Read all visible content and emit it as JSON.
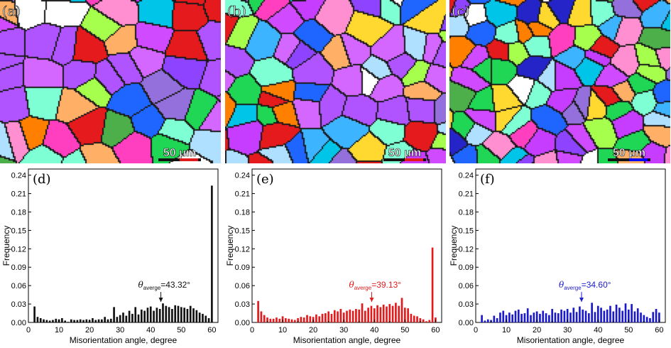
{
  "panels": [
    {
      "label": "(a)",
      "scale_bar": "50 μm",
      "bar_color": "#e31a1c",
      "seed": 11,
      "cell": 40,
      "band_strength": 0.75
    },
    {
      "label": "(b)",
      "scale_bar": "50 μm",
      "bar_color": "#e31a1c",
      "seed": 23,
      "cell": 36,
      "band_strength": 0.45
    },
    {
      "label": "(c)",
      "scale_bar": "50 μm",
      "bar_color": "#0000ff",
      "seed": 37,
      "cell": 30,
      "band_strength": 0.0
    }
  ],
  "chart_data": [
    {
      "type": "bar",
      "label": "(d)",
      "color": "#111111",
      "xlabel": "Misorientation angle, degree",
      "ylabel": "Frequency",
      "xlim": [
        0,
        62
      ],
      "ylim": [
        0,
        0.25
      ],
      "xticks": [
        0,
        10,
        20,
        30,
        40,
        50,
        60
      ],
      "yticks": [
        "0.00",
        "0.03",
        "0.06",
        "0.09",
        "0.12",
        "0.15",
        "0.18",
        "0.21",
        "0.24"
      ],
      "annotation": {
        "symbol": "θ",
        "sub": "averge",
        "text": "=43.32°",
        "x": 43.32
      },
      "x": [
        2,
        3,
        4,
        5,
        6,
        7,
        8,
        9,
        10,
        11,
        12,
        13,
        14,
        15,
        16,
        17,
        18,
        19,
        20,
        21,
        22,
        23,
        24,
        25,
        26,
        27,
        28,
        29,
        30,
        31,
        32,
        33,
        34,
        35,
        36,
        37,
        38,
        39,
        40,
        41,
        42,
        43,
        44,
        45,
        46,
        47,
        48,
        49,
        50,
        51,
        52,
        53,
        54,
        55,
        56,
        57,
        58,
        59,
        60
      ],
      "values": [
        0.026,
        0.009,
        0.007,
        0.005,
        0.004,
        0.003,
        0.004,
        0.006,
        0.005,
        0.007,
        0.003,
        0.001,
        0.005,
        0.004,
        0.004,
        0.005,
        0.004,
        0.005,
        0.004,
        0.007,
        0.004,
        0.005,
        0.005,
        0.009,
        0.005,
        0.006,
        0.025,
        0.009,
        0.012,
        0.016,
        0.011,
        0.019,
        0.014,
        0.025,
        0.013,
        0.021,
        0.019,
        0.024,
        0.026,
        0.019,
        0.024,
        0.022,
        0.031,
        0.027,
        0.025,
        0.022,
        0.028,
        0.027,
        0.025,
        0.024,
        0.022,
        0.027,
        0.023,
        0.02,
        0.016,
        0.014,
        0.011,
        0.007,
        0.223
      ]
    },
    {
      "type": "bar",
      "label": "(e)",
      "color": "#e31a1c",
      "xlabel": "Misorientation angle, degree",
      "ylabel": "Frequency",
      "xlim": [
        0,
        62
      ],
      "ylim": [
        0,
        0.25
      ],
      "xticks": [
        0,
        10,
        20,
        30,
        40,
        50,
        60
      ],
      "yticks": [
        "0.00",
        "0.03",
        "0.06",
        "0.09",
        "0.12",
        "0.15",
        "0.18",
        "0.21",
        "0.24"
      ],
      "annotation": {
        "symbol": "θ",
        "sub": "averge",
        "text": "=39.13°",
        "x": 39.13
      },
      "x": [
        2,
        3,
        4,
        5,
        6,
        7,
        8,
        9,
        10,
        11,
        12,
        13,
        14,
        15,
        16,
        17,
        18,
        19,
        20,
        21,
        22,
        23,
        24,
        25,
        26,
        27,
        28,
        29,
        30,
        31,
        32,
        33,
        34,
        35,
        36,
        37,
        38,
        39,
        40,
        41,
        42,
        43,
        44,
        45,
        46,
        47,
        48,
        49,
        50,
        51,
        52,
        53,
        54,
        55,
        56,
        57,
        58,
        59,
        60
      ],
      "values": [
        0.035,
        0.018,
        0.012,
        0.008,
        0.006,
        0.006,
        0.008,
        0.006,
        0.01,
        0.007,
        0.006,
        0.005,
        0.004,
        0.007,
        0.009,
        0.008,
        0.012,
        0.01,
        0.009,
        0.013,
        0.01,
        0.014,
        0.015,
        0.018,
        0.014,
        0.02,
        0.018,
        0.022,
        0.016,
        0.019,
        0.021,
        0.019,
        0.022,
        0.021,
        0.031,
        0.019,
        0.024,
        0.027,
        0.023,
        0.028,
        0.025,
        0.029,
        0.026,
        0.03,
        0.027,
        0.032,
        0.027,
        0.04,
        0.024,
        0.023,
        0.014,
        0.011,
        0.01,
        0.007,
        0.005,
        0.002,
        0.004,
        0.122,
        0.008
      ]
    },
    {
      "type": "bar",
      "label": "(f)",
      "color": "#1a1acc",
      "xlabel": "Misorientation angle, degree",
      "ylabel": "Frequency",
      "xlim": [
        0,
        62
      ],
      "ylim": [
        0,
        0.25
      ],
      "xticks": [
        0,
        10,
        20,
        30,
        40,
        50,
        60
      ],
      "yticks": [
        "0.00",
        "0.03",
        "0.06",
        "0.09",
        "0.12",
        "0.15",
        "0.18",
        "0.21",
        "0.24"
      ],
      "annotation": {
        "symbol": "θ",
        "sub": "averge",
        "text": "=34.60°",
        "x": 34.6
      },
      "x": [
        2,
        3,
        4,
        5,
        6,
        7,
        8,
        9,
        10,
        11,
        12,
        13,
        14,
        15,
        16,
        17,
        18,
        19,
        20,
        21,
        22,
        23,
        24,
        25,
        26,
        27,
        28,
        29,
        30,
        31,
        32,
        33,
        34,
        35,
        36,
        37,
        38,
        39,
        40,
        41,
        42,
        43,
        44,
        45,
        46,
        47,
        48,
        49,
        50,
        51,
        52,
        53,
        54,
        55,
        56,
        57,
        58,
        59,
        60
      ],
      "values": [
        0.012,
        0.003,
        0.005,
        0.004,
        0.011,
        0.007,
        0.016,
        0.019,
        0.012,
        0.016,
        0.013,
        0.019,
        0.021,
        0.014,
        0.015,
        0.023,
        0.012,
        0.016,
        0.018,
        0.014,
        0.019,
        0.015,
        0.012,
        0.022,
        0.016,
        0.015,
        0.021,
        0.019,
        0.022,
        0.016,
        0.024,
        0.017,
        0.026,
        0.021,
        0.019,
        0.015,
        0.032,
        0.017,
        0.027,
        0.024,
        0.019,
        0.021,
        0.027,
        0.018,
        0.029,
        0.024,
        0.019,
        0.031,
        0.021,
        0.03,
        0.018,
        0.023,
        0.016,
        0.012,
        0.009,
        0.007,
        0.017,
        0.022,
        0.016
      ]
    }
  ]
}
